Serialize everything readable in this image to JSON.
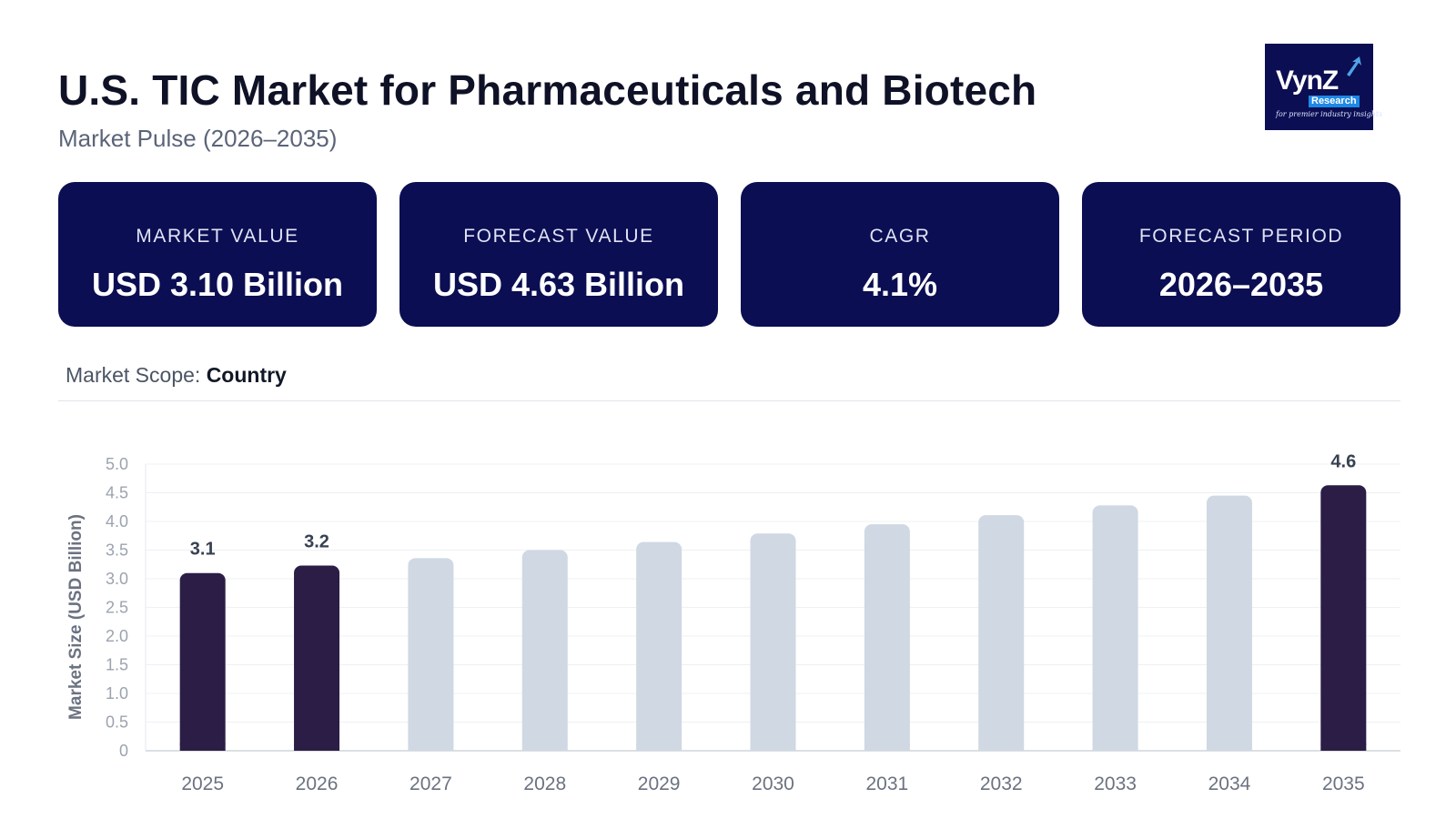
{
  "header": {
    "title": "U.S. TIC Market for Pharmaceuticals and Biotech",
    "subtitle": "Market Pulse (2026–2035)"
  },
  "logo": {
    "name": "VynZ",
    "sub": "Research",
    "tagline": "for premier industry insights"
  },
  "cards": [
    {
      "label": "MARKET VALUE",
      "value": "USD 3.10 Billion"
    },
    {
      "label": "FORECAST VALUE",
      "value": "USD 4.63 Billion"
    },
    {
      "label": "CAGR",
      "value": "4.1%"
    },
    {
      "label": "FORECAST PERIOD",
      "value": "2026–2035"
    }
  ],
  "scope": {
    "label": "Market Scope:",
    "value": "Country"
  },
  "colors": {
    "navy": "#0b0e52",
    "highlight_bar": "#2b1d45",
    "forecast_bar": "#cfd8e3"
  },
  "chart_data": {
    "type": "bar",
    "ylabel": "Market Size (USD Billion)",
    "categories": [
      "2025",
      "2026",
      "2027",
      "2028",
      "2029",
      "2030",
      "2031",
      "2032",
      "2033",
      "2034",
      "2035"
    ],
    "values": [
      3.1,
      3.23,
      3.36,
      3.5,
      3.64,
      3.79,
      3.95,
      4.11,
      4.28,
      4.45,
      4.63
    ],
    "data_labels": [
      "3.1",
      "3.2",
      "",
      "",
      "",
      "",
      "",
      "",
      "",
      "",
      "4.6"
    ],
    "highlighted": [
      true,
      true,
      false,
      false,
      false,
      false,
      false,
      false,
      false,
      false,
      true
    ],
    "yticks": [
      "0",
      "0.5",
      "1.0",
      "1.5",
      "2.0",
      "2.5",
      "3.0",
      "3.5",
      "4.0",
      "4.5",
      "5.0"
    ],
    "ylim": [
      0,
      5
    ],
    "grid": true,
    "legend": "none"
  }
}
